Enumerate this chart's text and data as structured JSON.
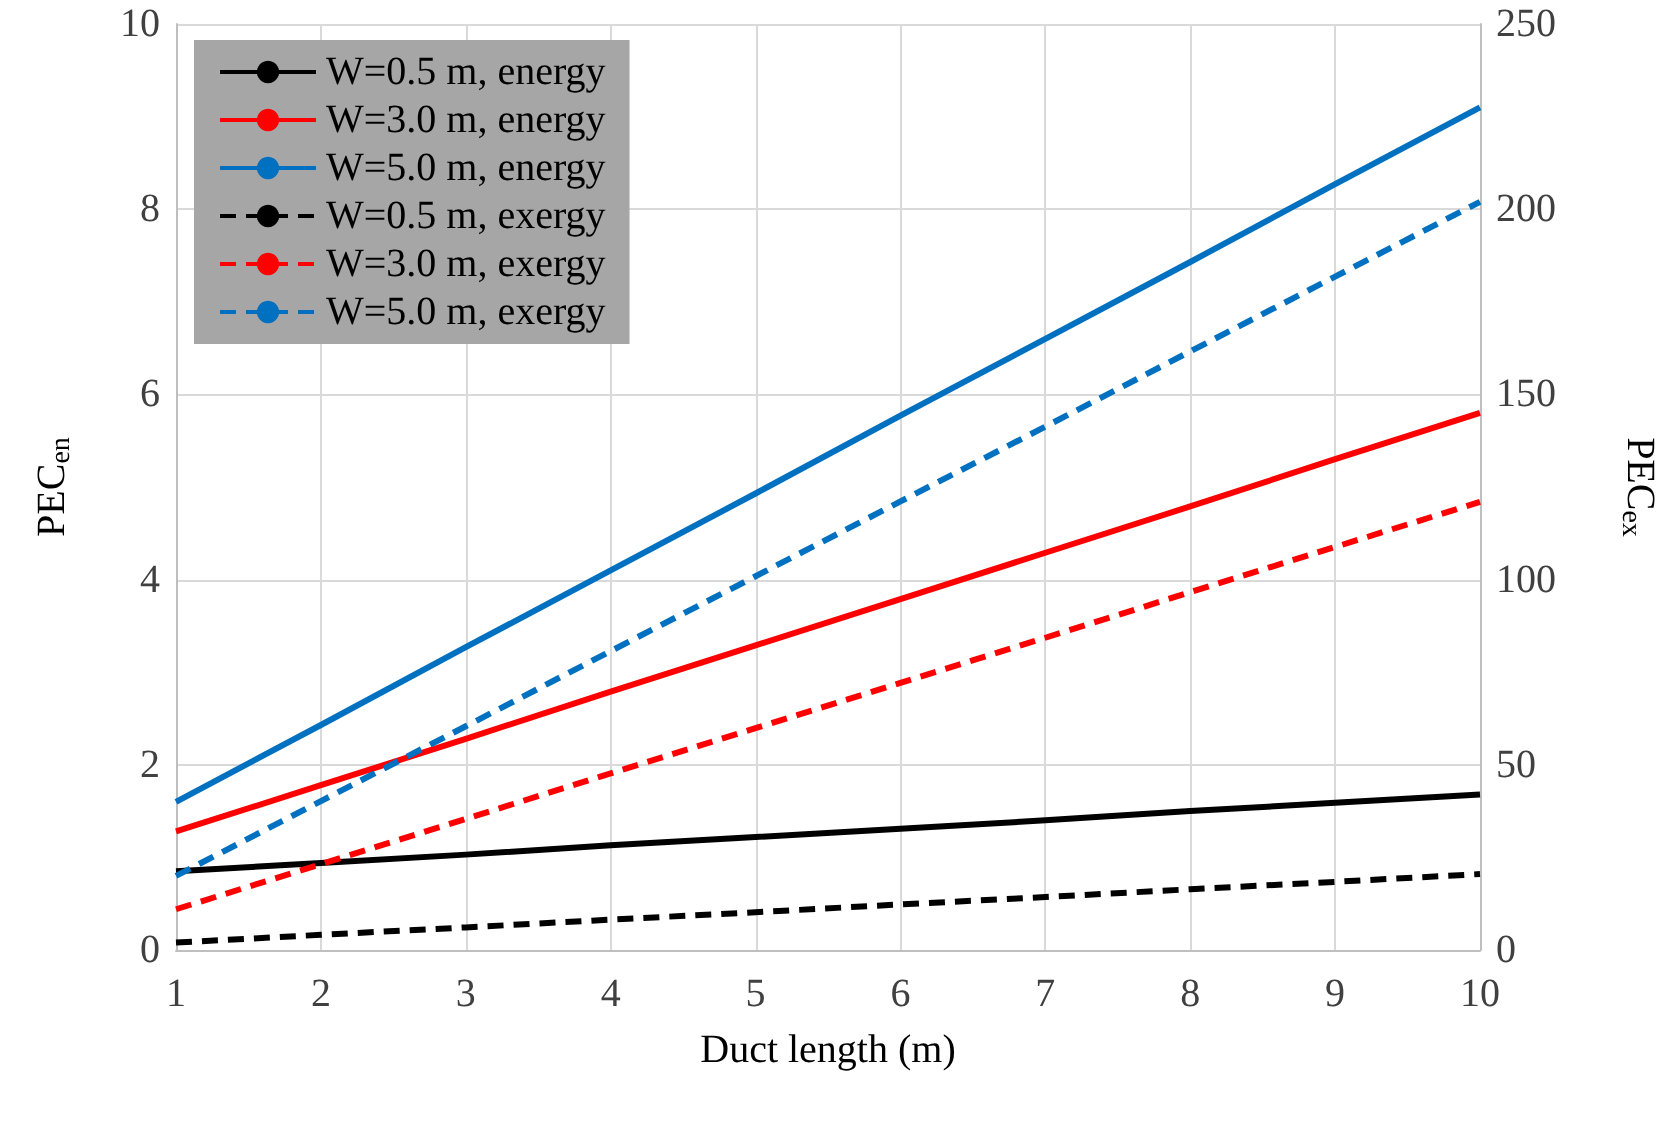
{
  "chart_data": {
    "type": "line",
    "xlabel": "Duct length (m)",
    "ylabel": "PEC$_{en}$",
    "y2label": "PEC$_{ex}$",
    "x": [
      1,
      2,
      3,
      4,
      5,
      6,
      7,
      8,
      9,
      10
    ],
    "xlim": [
      1,
      10
    ],
    "xticks": [
      1,
      2,
      3,
      4,
      5,
      6,
      7,
      8,
      9,
      10
    ],
    "ylim": [
      0,
      10
    ],
    "yticks": [
      0,
      2,
      4,
      6,
      8,
      10
    ],
    "y2lim": [
      0,
      250
    ],
    "y2ticks": [
      0,
      50,
      100,
      150,
      200,
      250
    ],
    "grid": true,
    "legend": "top left",
    "marker": "none",
    "series": [
      {
        "name": "W=0.5 m, energy",
        "color": "#000000",
        "line_style": "solid",
        "values": [
          0.85,
          0.94,
          1.03,
          1.13,
          1.22,
          1.31,
          1.4,
          1.5,
          1.59,
          1.68
        ]
      },
      {
        "name": "W=3.0 m, energy",
        "color": "#ff0000",
        "line_style": "solid",
        "values": [
          1.28,
          1.78,
          2.28,
          2.79,
          3.29,
          3.79,
          4.29,
          4.79,
          5.3,
          5.8
        ]
      },
      {
        "name": "W=5.0 m, energy",
        "color": "#0070c0",
        "line_style": "solid",
        "values": [
          1.6,
          2.43,
          3.27,
          4.1,
          4.93,
          5.77,
          6.6,
          7.43,
          8.27,
          9.1
        ]
      },
      {
        "name": "W=0.5 m, exergy",
        "color": "#000000",
        "line_style": "dashed",
        "axis": "y2",
        "values": [
          2,
          4.1,
          6.1,
          8.2,
          10.2,
          12.3,
          14.3,
          16.4,
          18.4,
          20.5
        ]
      },
      {
        "name": "W=3.0 m, exergy",
        "color": "#ff0000",
        "line_style": "dashed",
        "axis": "y2",
        "values": [
          11,
          23.2,
          35.4,
          47.7,
          59.9,
          72.1,
          84.3,
          96.6,
          108.8,
          121
        ]
      },
      {
        "name": "W=5.0 m, exergy",
        "color": "#0070c0",
        "line_style": "dashed",
        "axis": "y2",
        "values": [
          20,
          40.2,
          60.4,
          80.7,
          100.9,
          121.1,
          141.3,
          161.6,
          181.8,
          202
        ]
      }
    ]
  }
}
